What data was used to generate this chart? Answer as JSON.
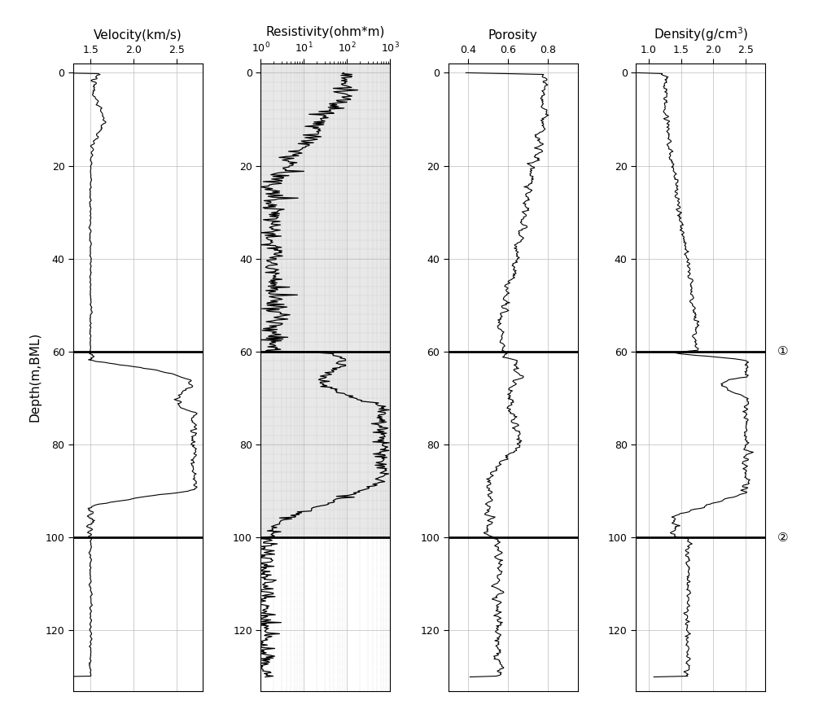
{
  "ylabel": "Depth(m,BML)",
  "depth_min": 0,
  "depth_max": 130,
  "depth_ticks": [
    0,
    20,
    40,
    60,
    80,
    100,
    120
  ],
  "hline1": 60,
  "hline2": 100,
  "panel1_title": "Velocity(km/s)",
  "panel1_xlim": [
    1.3,
    2.8
  ],
  "panel1_xticks": [
    1.5,
    2.0,
    2.5
  ],
  "panel2_title": "Resistivity(ohm*m)",
  "panel2_xlim_log": [
    1.0,
    1000.0
  ],
  "panel2_xticks_log": [
    1,
    10,
    100,
    1000
  ],
  "panel3_title": "Porosity",
  "panel3_xlim": [
    0.3,
    0.95
  ],
  "panel3_xticks": [
    0.4,
    0.6,
    0.8
  ],
  "panel4_title": "Density(g/cm$^3$)",
  "panel4_xlim": [
    0.8,
    2.8
  ],
  "panel4_xticks": [
    1.0,
    1.5,
    2.0,
    2.5
  ],
  "annotation1": "①",
  "annotation2": "②",
  "random_seed": 99
}
